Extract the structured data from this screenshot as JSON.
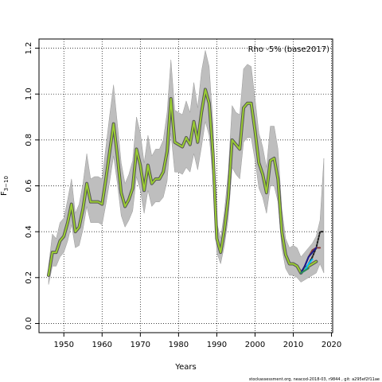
{
  "chart_data": {
    "type": "line",
    "title": "",
    "xlabel": "Years",
    "ylabel": "F",
    "ylabel_subscript": "3−10",
    "xlim": [
      1943.5,
      2020.3
    ],
    "ylim": [
      -0.04,
      1.24
    ],
    "x_ticks": [
      1950,
      1960,
      1970,
      1980,
      1990,
      2000,
      2010,
      2020
    ],
    "y_ticks": [
      "0.0",
      "0.2",
      "0.4",
      "0.6",
      "0.8",
      "1.0",
      "1.2"
    ],
    "y_tick_values": [
      0.0,
      0.2,
      0.4,
      0.6,
      0.8,
      1.0,
      1.2
    ],
    "grid": true,
    "legend_text": "Rho -5% (base2017)",
    "legend_position": "top-right",
    "footer": "stockassessment.org, neacod-2018-03, r9844 , git: a295ef2f11ae",
    "colors": {
      "band": "#bebebe",
      "band_edge": "#9a9a9a",
      "main_outline": "#555555",
      "main": "#9acd32",
      "peel_2016": "#8b3a3a",
      "peel_2015": "#1a1a8b",
      "peel_2014": "#00bfff",
      "peel_2013": "#2e8b57",
      "peel_final": "#222222"
    },
    "series": [
      {
        "name": "",
        "role": "main",
        "x": [
          1946,
          1947,
          1948,
          1949,
          1950,
          1951,
          1952,
          1953,
          1954,
          1955,
          1956,
          1957,
          1958,
          1959,
          1960,
          1961,
          1962,
          1963,
          1964,
          1965,
          1966,
          1967,
          1968,
          1969,
          1970,
          1971,
          1972,
          1973,
          1974,
          1975,
          1976,
          1977,
          1978,
          1979,
          1980,
          1981,
          1982,
          1983,
          1984,
          1985,
          1986,
          1987,
          1988,
          1989,
          1990,
          1991,
          1992,
          1993,
          1994,
          1995,
          1996,
          1997,
          1998,
          1999,
          2000,
          2001,
          2002,
          2003,
          2004,
          2005,
          2006,
          2007,
          2008,
          2009,
          2010,
          2011,
          2012,
          2013,
          2014,
          2015,
          2016
        ],
        "y": [
          0.21,
          0.31,
          0.31,
          0.36,
          0.38,
          0.44,
          0.52,
          0.4,
          0.42,
          0.5,
          0.61,
          0.53,
          0.53,
          0.53,
          0.52,
          0.63,
          0.75,
          0.87,
          0.73,
          0.57,
          0.51,
          0.54,
          0.59,
          0.76,
          0.69,
          0.58,
          0.69,
          0.61,
          0.63,
          0.63,
          0.66,
          0.75,
          0.98,
          0.79,
          0.78,
          0.77,
          0.81,
          0.78,
          0.88,
          0.79,
          0.92,
          1.02,
          0.96,
          0.74,
          0.37,
          0.31,
          0.41,
          0.55,
          0.8,
          0.78,
          0.76,
          0.94,
          0.96,
          0.96,
          0.84,
          0.7,
          0.65,
          0.57,
          0.71,
          0.72,
          0.63,
          0.4,
          0.3,
          0.26,
          0.26,
          0.25,
          0.22,
          0.24,
          0.25,
          0.26,
          0.27
        ]
      },
      {
        "name": "",
        "role": "band_upper",
        "x": [
          1946,
          1947,
          1948,
          1949,
          1950,
          1951,
          1952,
          1953,
          1954,
          1955,
          1956,
          1957,
          1958,
          1959,
          1960,
          1961,
          1962,
          1963,
          1964,
          1965,
          1966,
          1967,
          1968,
          1969,
          1970,
          1971,
          1972,
          1973,
          1974,
          1975,
          1976,
          1977,
          1978,
          1979,
          1980,
          1981,
          1982,
          1983,
          1984,
          1985,
          1986,
          1987,
          1988,
          1989,
          1990,
          1991,
          1992,
          1993,
          1994,
          1995,
          1996,
          1997,
          1998,
          1999,
          2000,
          2001,
          2002,
          2003,
          2004,
          2005,
          2006,
          2007,
          2008,
          2009,
          2010,
          2011,
          2012,
          2013,
          2014,
          2015,
          2016,
          2017,
          2018
        ],
        "y": [
          0.25,
          0.39,
          0.37,
          0.44,
          0.46,
          0.54,
          0.63,
          0.48,
          0.52,
          0.61,
          0.74,
          0.63,
          0.64,
          0.64,
          0.63,
          0.77,
          0.91,
          1.04,
          0.87,
          0.7,
          0.61,
          0.65,
          0.71,
          0.9,
          0.83,
          0.7,
          0.82,
          0.73,
          0.76,
          0.76,
          0.8,
          0.92,
          1.15,
          0.93,
          0.92,
          0.91,
          0.97,
          0.92,
          1.05,
          0.94,
          1.1,
          1.19,
          1.12,
          0.87,
          0.44,
          0.37,
          0.49,
          0.66,
          0.95,
          0.92,
          0.91,
          1.11,
          1.13,
          1.12,
          0.98,
          0.83,
          0.77,
          0.68,
          0.86,
          0.86,
          0.76,
          0.5,
          0.37,
          0.33,
          0.34,
          0.33,
          0.29,
          0.31,
          0.33,
          0.35,
          0.38,
          0.45,
          0.72
        ]
      },
      {
        "name": "",
        "role": "band_lower",
        "x": [
          1946,
          1947,
          1948,
          1949,
          1950,
          1951,
          1952,
          1953,
          1954,
          1955,
          1956,
          1957,
          1958,
          1959,
          1960,
          1961,
          1962,
          1963,
          1964,
          1965,
          1966,
          1967,
          1968,
          1969,
          1970,
          1971,
          1972,
          1973,
          1974,
          1975,
          1976,
          1977,
          1978,
          1979,
          1980,
          1981,
          1982,
          1983,
          1984,
          1985,
          1986,
          1987,
          1988,
          1989,
          1990,
          1991,
          1992,
          1993,
          1994,
          1995,
          1996,
          1997,
          1998,
          1999,
          2000,
          2001,
          2002,
          2003,
          2004,
          2005,
          2006,
          2007,
          2008,
          2009,
          2010,
          2011,
          2012,
          2013,
          2014,
          2015,
          2016,
          2017,
          2018
        ],
        "y": [
          0.17,
          0.25,
          0.25,
          0.29,
          0.31,
          0.36,
          0.43,
          0.33,
          0.34,
          0.41,
          0.51,
          0.44,
          0.44,
          0.44,
          0.43,
          0.52,
          0.62,
          0.73,
          0.61,
          0.47,
          0.42,
          0.45,
          0.49,
          0.64,
          0.58,
          0.48,
          0.58,
          0.51,
          0.53,
          0.53,
          0.55,
          0.62,
          0.83,
          0.66,
          0.66,
          0.65,
          0.68,
          0.66,
          0.74,
          0.67,
          0.77,
          0.88,
          0.82,
          0.63,
          0.31,
          0.26,
          0.34,
          0.46,
          0.68,
          0.65,
          0.63,
          0.79,
          0.81,
          0.81,
          0.71,
          0.59,
          0.55,
          0.48,
          0.6,
          0.6,
          0.53,
          0.33,
          0.24,
          0.21,
          0.21,
          0.2,
          0.18,
          0.19,
          0.2,
          0.21,
          0.22,
          0.26,
          0.22
        ]
      },
      {
        "name": "",
        "role": "peel_final",
        "x": [
          2012,
          2013,
          2014,
          2015,
          2016,
          2017,
          2018
        ],
        "y": [
          0.22,
          0.23,
          0.26,
          0.29,
          0.33,
          0.4,
          0.4
        ]
      },
      {
        "name": "",
        "role": "peel_2016",
        "x": [
          2012,
          2013,
          2014,
          2015,
          2016,
          2017
        ],
        "y": [
          0.22,
          0.25,
          0.29,
          0.32,
          0.33,
          0.33
        ]
      },
      {
        "name": "",
        "role": "peel_2015",
        "x": [
          2012,
          2013,
          2014,
          2015,
          2016
        ],
        "y": [
          0.22,
          0.25,
          0.29,
          0.31,
          0.33
        ]
      },
      {
        "name": "",
        "role": "peel_2014",
        "x": [
          2012,
          2013,
          2014,
          2015
        ],
        "y": [
          0.22,
          0.23,
          0.26,
          0.28
        ]
      },
      {
        "name": "",
        "role": "peel_2013",
        "x": [
          2012,
          2013,
          2014
        ],
        "y": [
          0.22,
          0.23,
          0.24
        ]
      }
    ]
  }
}
